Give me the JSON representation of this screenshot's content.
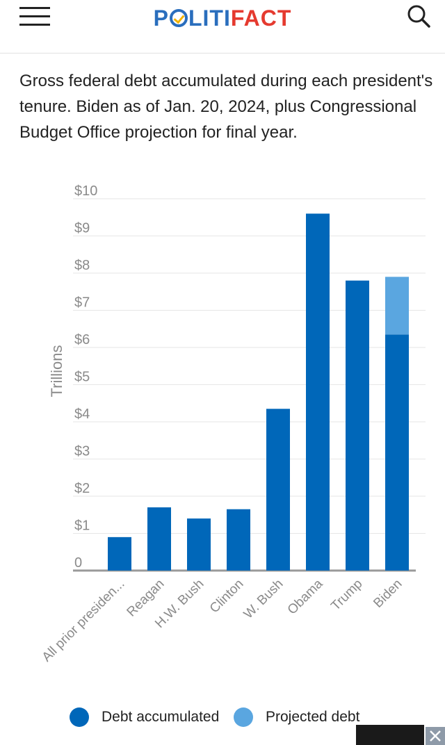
{
  "header": {
    "logo_part1": "P",
    "logo_part2": "LITI",
    "logo_part3": "FACT",
    "menu_icon": "hamburger-menu-icon",
    "search_icon": "search-icon"
  },
  "description": "Gross federal debt accumulated during each president's tenure. Biden as of Jan. 20, 2024, plus Congressional Budget Office projection for final year.",
  "colors": {
    "debt_accumulated": "#0067b9",
    "projected_debt": "#5aa6e0",
    "grid": "#e6e6e6",
    "baseline": "#9a9a9a",
    "logo_blue": "#2a6ebd",
    "logo_red": "#e53a2f"
  },
  "chart_data": {
    "type": "bar",
    "stacked": true,
    "ylabel": "Trillions",
    "ylim": [
      0,
      10
    ],
    "y_ticks": [
      {
        "value": 0,
        "label": "0"
      },
      {
        "value": 1,
        "label": "$1"
      },
      {
        "value": 2,
        "label": "$2"
      },
      {
        "value": 3,
        "label": "$3"
      },
      {
        "value": 4,
        "label": "$4"
      },
      {
        "value": 5,
        "label": "$5"
      },
      {
        "value": 6,
        "label": "$6"
      },
      {
        "value": 7,
        "label": "$7"
      },
      {
        "value": 8,
        "label": "$8"
      },
      {
        "value": 9,
        "label": "$9"
      },
      {
        "value": 10,
        "label": "$10"
      }
    ],
    "grid": true,
    "legend_position": "bottom",
    "categories": [
      "All prior presiden...",
      "Reagan",
      "H.W. Bush",
      "Clinton",
      "W. Bush",
      "Obama",
      "Trump",
      "Biden"
    ],
    "series": [
      {
        "name": "Debt accumulated",
        "values": [
          0.9,
          1.7,
          1.4,
          1.65,
          4.35,
          9.6,
          7.8,
          6.35
        ]
      },
      {
        "name": "Projected debt",
        "values": [
          0,
          0,
          0,
          0,
          0,
          0,
          0,
          1.55
        ]
      }
    ]
  },
  "ad": {
    "close_icon": "close-icon"
  }
}
